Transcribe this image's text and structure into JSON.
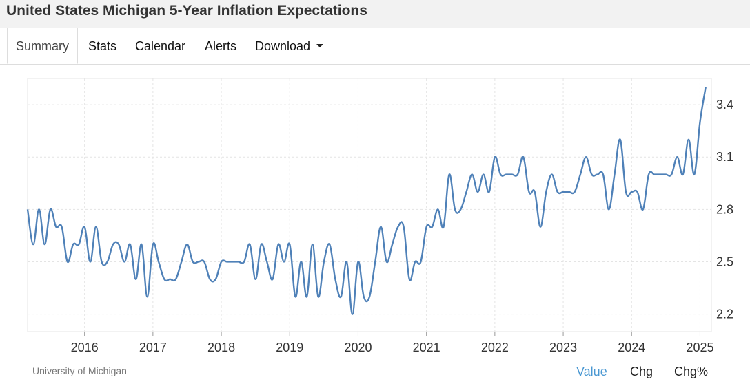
{
  "page": {
    "title": "United States Michigan 5-Year Inflation Expectations"
  },
  "tabs": [
    {
      "label": "Summary",
      "active": true
    },
    {
      "label": "Stats"
    },
    {
      "label": "Calendar"
    },
    {
      "label": "Alerts"
    },
    {
      "label": "Download",
      "icon": "caret-down-icon"
    }
  ],
  "footer": {
    "source": "University of Michigan",
    "toggles": [
      {
        "label": "Value",
        "active": true
      },
      {
        "label": "Chg"
      },
      {
        "label": "Chg%"
      }
    ]
  },
  "colors": {
    "line": "#4f81b8",
    "grid": "#e4e4e4",
    "active_toggle": "#4a98d2"
  },
  "chart_data": {
    "type": "line",
    "title": "",
    "xlabel": "",
    "ylabel": "",
    "grid": true,
    "y_axis_side": "right",
    "ylim": [
      2.1,
      3.55
    ],
    "xlim": [
      "2015-03",
      "2025-03"
    ],
    "x_ticks": [
      "2016",
      "2017",
      "2018",
      "2019",
      "2020",
      "2021",
      "2022",
      "2023",
      "2024",
      "2025"
    ],
    "y_ticks": [
      2.2,
      2.5,
      2.8,
      3.1,
      3.4
    ],
    "series": [
      {
        "x": [
          "2015-03",
          "2015-04",
          "2015-05",
          "2015-06",
          "2015-07",
          "2015-08",
          "2015-09",
          "2015-10",
          "2015-11",
          "2015-12",
          "2016-01",
          "2016-02",
          "2016-03",
          "2016-04",
          "2016-05",
          "2016-06",
          "2016-07",
          "2016-08",
          "2016-09",
          "2016-10",
          "2016-11",
          "2016-12",
          "2017-01",
          "2017-02",
          "2017-03",
          "2017-04",
          "2017-05",
          "2017-06",
          "2017-07",
          "2017-08",
          "2017-09",
          "2017-10",
          "2017-11",
          "2017-12",
          "2018-01",
          "2018-02",
          "2018-03",
          "2018-04",
          "2018-05",
          "2018-06",
          "2018-07",
          "2018-08",
          "2018-09",
          "2018-10",
          "2018-11",
          "2018-12",
          "2019-01",
          "2019-02",
          "2019-03",
          "2019-04",
          "2019-05",
          "2019-06",
          "2019-07",
          "2019-08",
          "2019-09",
          "2019-10",
          "2019-11",
          "2019-12",
          "2020-01",
          "2020-02",
          "2020-03",
          "2020-04",
          "2020-05",
          "2020-06",
          "2020-07",
          "2020-08",
          "2020-09",
          "2020-10",
          "2020-11",
          "2020-12",
          "2021-01",
          "2021-02",
          "2021-03",
          "2021-04",
          "2021-05",
          "2021-06",
          "2021-07",
          "2021-08",
          "2021-09",
          "2021-10",
          "2021-11",
          "2021-12",
          "2022-01",
          "2022-02",
          "2022-03",
          "2022-04",
          "2022-05",
          "2022-06",
          "2022-07",
          "2022-08",
          "2022-09",
          "2022-10",
          "2022-11",
          "2022-12",
          "2023-01",
          "2023-02",
          "2023-03",
          "2023-04",
          "2023-05",
          "2023-06",
          "2023-07",
          "2023-08",
          "2023-09",
          "2023-10",
          "2023-11",
          "2023-12",
          "2024-01",
          "2024-02",
          "2024-03",
          "2024-04",
          "2024-05",
          "2024-06",
          "2024-07",
          "2024-08",
          "2024-09",
          "2024-10",
          "2024-11",
          "2024-12",
          "2025-01",
          "2025-02"
        ],
        "values": [
          2.8,
          2.6,
          2.8,
          2.6,
          2.8,
          2.7,
          2.7,
          2.5,
          2.6,
          2.6,
          2.7,
          2.5,
          2.7,
          2.5,
          2.5,
          2.6,
          2.6,
          2.5,
          2.6,
          2.4,
          2.6,
          2.3,
          2.6,
          2.5,
          2.4,
          2.4,
          2.4,
          2.5,
          2.6,
          2.5,
          2.5,
          2.5,
          2.4,
          2.4,
          2.5,
          2.5,
          2.5,
          2.5,
          2.5,
          2.6,
          2.4,
          2.6,
          2.5,
          2.4,
          2.6,
          2.5,
          2.6,
          2.3,
          2.5,
          2.3,
          2.6,
          2.3,
          2.5,
          2.6,
          2.4,
          2.3,
          2.5,
          2.2,
          2.5,
          2.3,
          2.3,
          2.5,
          2.7,
          2.5,
          2.6,
          2.7,
          2.7,
          2.4,
          2.5,
          2.5,
          2.7,
          2.7,
          2.8,
          2.7,
          3.0,
          2.8,
          2.8,
          2.9,
          3.0,
          2.9,
          3.0,
          2.9,
          3.1,
          3.0,
          3.0,
          3.0,
          3.0,
          3.1,
          2.9,
          2.9,
          2.7,
          2.9,
          3.0,
          2.9,
          2.9,
          2.9,
          2.9,
          3.0,
          3.1,
          3.0,
          3.0,
          3.0,
          2.8,
          3.0,
          3.2,
          2.9,
          2.9,
          2.9,
          2.8,
          3.0,
          3.0,
          3.0,
          3.0,
          3.0,
          3.1,
          3.0,
          3.2,
          3.0,
          3.3,
          3.5
        ]
      }
    ]
  }
}
